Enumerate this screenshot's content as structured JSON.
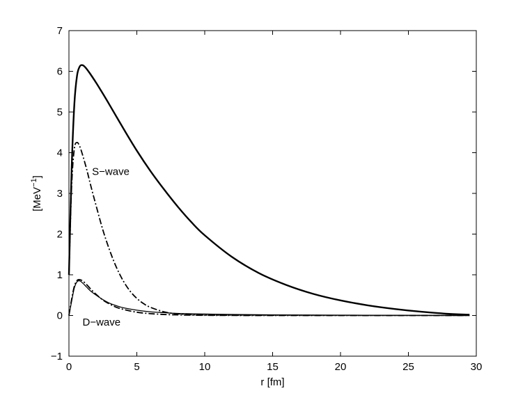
{
  "chart_data": {
    "type": "line",
    "xlabel": "r   [fm]",
    "ylabel": "[MeV",
    "ylabel_sup": "−1",
    "ylabel_close": "]",
    "xlim": [
      0,
      30
    ],
    "ylim": [
      -1,
      7
    ],
    "xticks": [
      0,
      5,
      10,
      15,
      20,
      25,
      30
    ],
    "yticks": [
      -1,
      0,
      1,
      2,
      3,
      4,
      5,
      6,
      7
    ],
    "xtick_labels": [
      "0",
      "5",
      "10",
      "15",
      "20",
      "25",
      "30"
    ],
    "ytick_labels": [
      "−1",
      "0",
      "1",
      "2",
      "3",
      "4",
      "5",
      "6",
      "7"
    ],
    "grid": false,
    "legend": "none",
    "annotations": [
      {
        "id": "s-wave",
        "text": "S−wave",
        "x": 1.7,
        "y": 3.45
      },
      {
        "id": "d-wave",
        "text": "D−wave",
        "x": 1.0,
        "y": -0.25
      }
    ],
    "series": [
      {
        "style": "solid-thick",
        "x": [
          0,
          0.2,
          0.4,
          0.6,
          0.8,
          1.0,
          1.2,
          1.5,
          2,
          2.5,
          3,
          4,
          5,
          6,
          7,
          8,
          9,
          10,
          12,
          14,
          16,
          18,
          20,
          22,
          24,
          26,
          28,
          29.5
        ],
        "y": [
          1.0,
          3.6,
          5.2,
          5.9,
          6.12,
          6.15,
          6.1,
          5.97,
          5.72,
          5.45,
          5.17,
          4.6,
          4.05,
          3.55,
          3.1,
          2.68,
          2.3,
          1.97,
          1.44,
          1.04,
          0.75,
          0.53,
          0.37,
          0.25,
          0.16,
          0.09,
          0.04,
          0.02
        ]
      },
      {
        "style": "dash-dot",
        "x": [
          0,
          0.2,
          0.4,
          0.6,
          0.8,
          1.0,
          1.3,
          1.6,
          2,
          2.5,
          3,
          3.5,
          4,
          4.5,
          5,
          5.5,
          6,
          7,
          8,
          10,
          15,
          20,
          25,
          29.5
        ],
        "y": [
          1.0,
          3.2,
          4.1,
          4.25,
          4.15,
          3.95,
          3.6,
          3.2,
          2.7,
          2.1,
          1.6,
          1.18,
          0.85,
          0.6,
          0.42,
          0.29,
          0.2,
          0.09,
          0.04,
          0.01,
          0.005,
          0.002,
          0.0,
          0.0
        ]
      },
      {
        "style": "solid-thin",
        "x": [
          0,
          0.2,
          0.4,
          0.6,
          0.8,
          1.0,
          1.3,
          1.6,
          2,
          2.5,
          3,
          3.5,
          4,
          5,
          6,
          7,
          8,
          10,
          12,
          15,
          20,
          25,
          29.5
        ],
        "y": [
          0.0,
          0.35,
          0.68,
          0.83,
          0.85,
          0.8,
          0.7,
          0.6,
          0.5,
          0.39,
          0.3,
          0.24,
          0.19,
          0.13,
          0.09,
          0.07,
          0.05,
          0.035,
          0.025,
          0.015,
          0.008,
          0.004,
          0.0
        ]
      },
      {
        "style": "dash-dot",
        "x": [
          0,
          0.2,
          0.4,
          0.6,
          0.8,
          1.0,
          1.3,
          1.6,
          2,
          2.5,
          3,
          3.5,
          4,
          5,
          6,
          7,
          8,
          10,
          12,
          15,
          20,
          25,
          29.5
        ],
        "y": [
          0.0,
          0.4,
          0.72,
          0.86,
          0.88,
          0.85,
          0.76,
          0.65,
          0.52,
          0.38,
          0.28,
          0.2,
          0.15,
          0.08,
          0.045,
          0.025,
          0.015,
          0.005,
          0.002,
          0.0,
          0.0,
          0.0,
          0.0
        ]
      }
    ]
  }
}
